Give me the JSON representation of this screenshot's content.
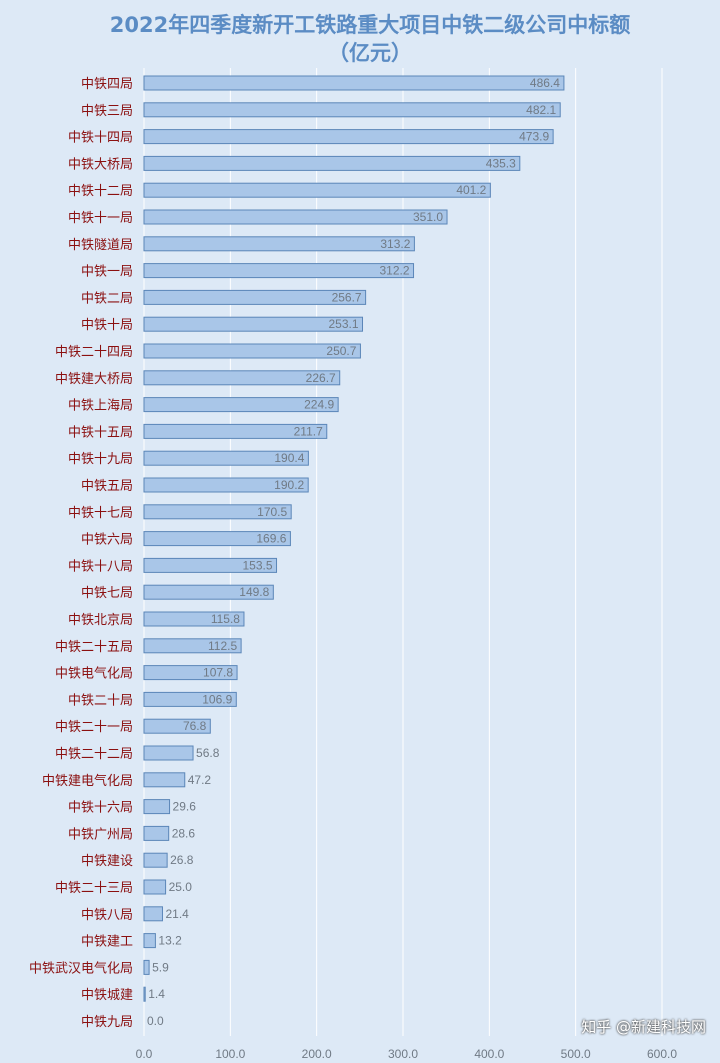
{
  "chart_data": {
    "type": "bar",
    "orientation": "horizontal",
    "title": "2022年四季度新开工铁路重大项目中铁二级公司中标额",
    "subtitle": "（亿元）",
    "xlim": [
      0,
      600
    ],
    "xticks": [
      "0.0",
      "100.0",
      "200.0",
      "300.0",
      "400.0",
      "500.0",
      "600.0"
    ],
    "grid": true,
    "categories": [
      "中铁四局",
      "中铁三局",
      "中铁十四局",
      "中铁大桥局",
      "中铁十二局",
      "中铁十一局",
      "中铁隧道局",
      "中铁一局",
      "中铁二局",
      "中铁十局",
      "中铁二十四局",
      "中铁建大桥局",
      "中铁上海局",
      "中铁十五局",
      "中铁十九局",
      "中铁五局",
      "中铁十七局",
      "中铁六局",
      "中铁十八局",
      "中铁七局",
      "中铁北京局",
      "中铁二十五局",
      "中铁电气化局",
      "中铁二十局",
      "中铁二十一局",
      "中铁二十二局",
      "中铁建电气化局",
      "中铁十六局",
      "中铁广州局",
      "中铁建设",
      "中铁二十三局",
      "中铁八局",
      "中铁建工",
      "中铁武汉电气化局",
      "中铁城建",
      "中铁九局"
    ],
    "values": [
      486.4,
      482.1,
      473.9,
      435.3,
      401.2,
      351.0,
      313.2,
      312.2,
      256.7,
      253.1,
      250.7,
      226.7,
      224.9,
      211.7,
      190.4,
      190.2,
      170.5,
      169.6,
      153.5,
      149.8,
      115.8,
      112.5,
      107.8,
      106.9,
      76.8,
      56.8,
      47.2,
      29.6,
      28.6,
      26.8,
      25.0,
      21.4,
      13.2,
      5.9,
      1.4,
      0.0
    ],
    "value_labels": [
      "486.4",
      "482.1",
      "473.9",
      "435.3",
      "401.2",
      "351.0",
      "313.2",
      "312.2",
      "256.7",
      "253.1",
      "250.7",
      "226.7",
      "224.9",
      "211.7",
      "190.4",
      "190.2",
      "170.5",
      "169.6",
      "153.5",
      "149.8",
      "115.8",
      "112.5",
      "107.8",
      "106.9",
      "76.8",
      "56.8",
      "47.2",
      "29.6",
      "28.6",
      "26.8",
      "25.0",
      "21.4",
      "13.2",
      "5.9",
      "1.4",
      "0.0"
    ]
  },
  "watermark": "知乎 @新建科技网",
  "colors": {
    "background": "#dde9f6",
    "bar_fill": "#a9c6e8",
    "bar_stroke": "#5b86b8",
    "category_text": "#8b1010",
    "title_text": "#5b8cc4",
    "value_text": "#707a85"
  }
}
